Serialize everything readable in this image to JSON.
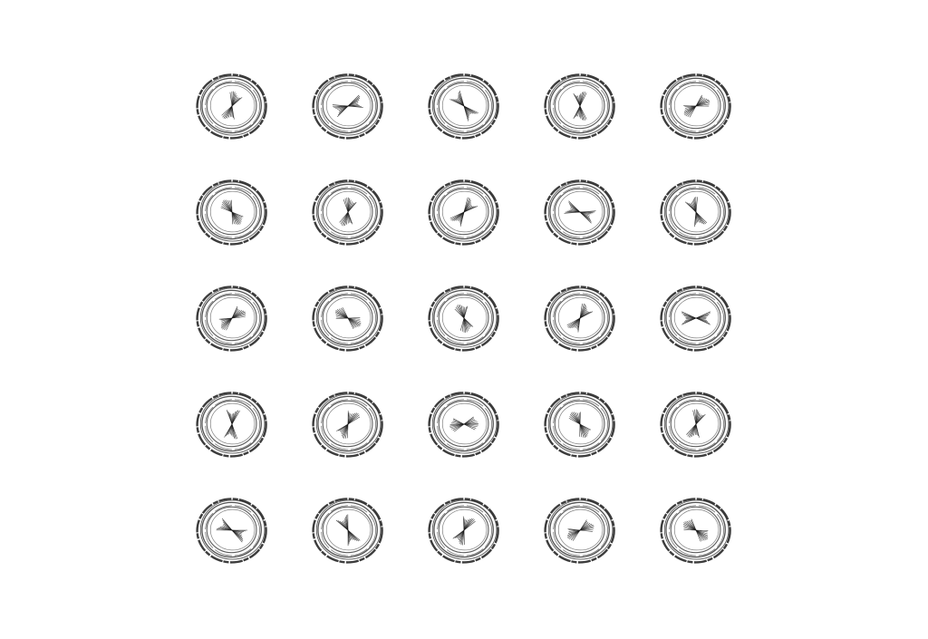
{
  "grid": {
    "rows": 5,
    "cols": 5
  },
  "tiles": [
    {
      "angle": 20
    },
    {
      "angle": 70
    },
    {
      "angle": -40
    },
    {
      "angle": 0
    },
    {
      "angle": 60
    },
    {
      "angle": -35
    },
    {
      "angle": 10
    },
    {
      "angle": 40
    },
    {
      "angle": -70
    },
    {
      "angle": -20
    },
    {
      "angle": 55
    },
    {
      "angle": -60
    },
    {
      "angle": -15
    },
    {
      "angle": 35
    },
    {
      "angle": 90
    },
    {
      "angle": 5
    },
    {
      "angle": 30
    },
    {
      "angle": 85
    },
    {
      "angle": -30
    },
    {
      "angle": 15
    },
    {
      "angle": -65
    },
    {
      "angle": -25
    },
    {
      "angle": 25
    },
    {
      "angle": 65
    },
    {
      "angle": -55
    }
  ],
  "colors": {
    "ink": "#1a1a1a",
    "background": "#ffffff"
  }
}
